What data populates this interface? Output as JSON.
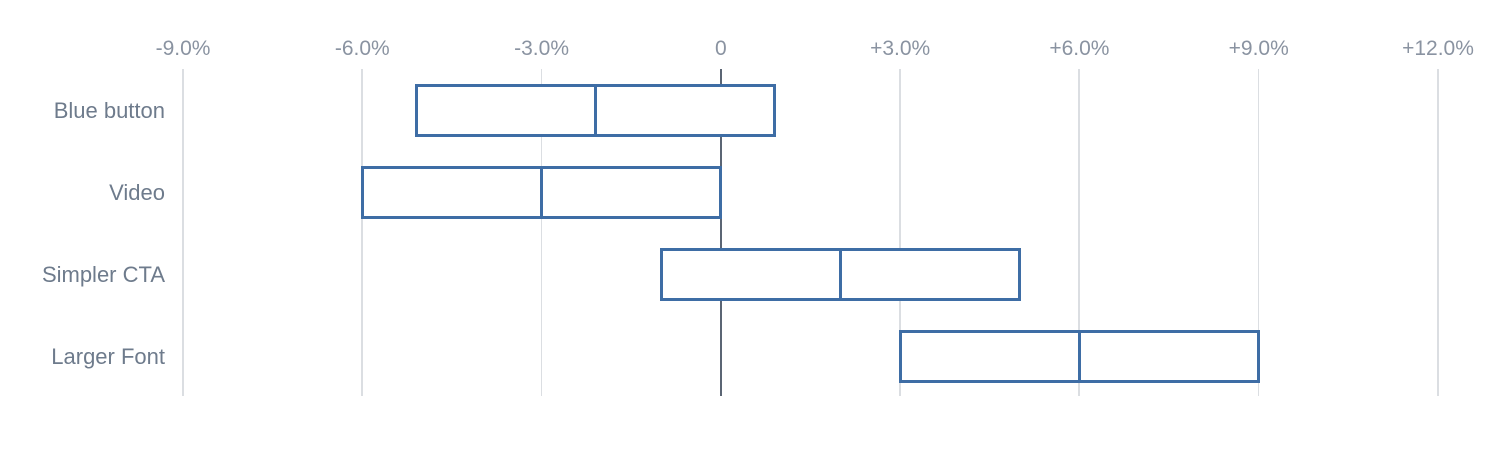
{
  "chart": {
    "background": "#ffffff",
    "colors": {
      "bar_border": "#3e6da5",
      "bar_fill": "#ffffff",
      "gridline": "#dbdee2",
      "zero_line": "#5b6574",
      "axis_label": "#8a93a1",
      "category_label": "#6e7b8c"
    }
  },
  "chart_data": {
    "type": "bar",
    "subtype": "horizontal_range_intervals",
    "orientation": "horizontal",
    "title": "",
    "xlabel": "",
    "ylabel": "",
    "legend": "none",
    "grid": "vertical",
    "categories": [
      "Blue button",
      "Video",
      "Simpler CTA",
      "Larger Font"
    ],
    "series": [
      {
        "name": "lift_confidence_interval_pct",
        "points": [
          {
            "category": "Blue button",
            "low": -5.1,
            "mid": -2.1,
            "high": 0.9
          },
          {
            "category": "Video",
            "low": -6.0,
            "mid": -3.0,
            "high": 0.0
          },
          {
            "category": "Simpler CTA",
            "low": -1.0,
            "mid": 2.0,
            "high": 5.0
          },
          {
            "category": "Larger Font",
            "low": 3.0,
            "mid": 6.0,
            "high": 9.0
          }
        ]
      }
    ],
    "x_axis": {
      "min": -9.0,
      "max": 12.0,
      "position": "top",
      "zero_line": true,
      "tick_values": [
        -9,
        -6,
        -3,
        0,
        3,
        6,
        9,
        12
      ],
      "tick_labels": [
        "-9.0%",
        "-6.0%",
        "-3.0%",
        "0",
        "+3.0%",
        "+6.0%",
        "+9.0%",
        "+12.0%"
      ]
    }
  }
}
